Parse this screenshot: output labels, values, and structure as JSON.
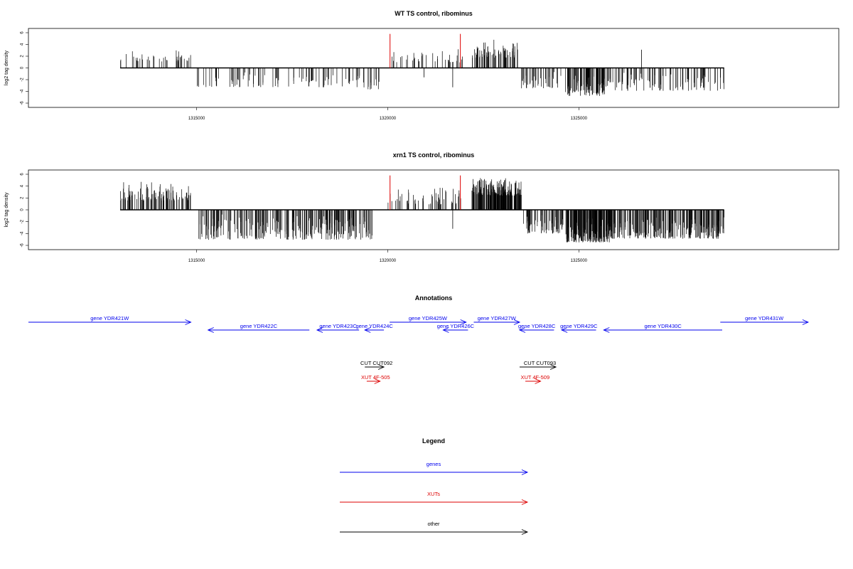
{
  "chart_data": [
    {
      "type": "bar",
      "title": "WT TS control, ribominus",
      "ylabel": "log2 tag density",
      "xlim": [
        1310600,
        1331800
      ],
      "ylim": [
        -6,
        6
      ],
      "xticks": [
        1315000,
        1320000,
        1325000
      ],
      "yticks": [
        -6,
        -4,
        -2,
        0,
        2,
        4,
        6
      ],
      "markers": [
        {
          "x": 1320060,
          "y": 5.8,
          "color": "#dd0000"
        },
        {
          "x": 1321900,
          "y": 5.8,
          "color": "#dd0000"
        }
      ],
      "segments": [
        {
          "from": 1313000,
          "to": 1314850,
          "min": 0.6,
          "max": 3.4,
          "n": 40
        },
        {
          "from": 1315000,
          "to": 1319300,
          "min": -3.8,
          "max": -0.4,
          "n": 90
        },
        {
          "from": 1319350,
          "to": 1319800,
          "min": -4.2,
          "max": -0.8,
          "n": 14
        },
        {
          "from": 1320100,
          "to": 1322000,
          "min": 0.5,
          "max": 3.2,
          "n": 40
        },
        {
          "from": 1322200,
          "to": 1323400,
          "min": 1.2,
          "max": 4.8,
          "n": 70
        },
        {
          "from": 1323500,
          "to": 1324600,
          "min": -4.0,
          "max": -0.5,
          "n": 40
        },
        {
          "from": 1324650,
          "to": 1325700,
          "min": -5.4,
          "max": -1.2,
          "n": 90
        },
        {
          "from": 1325700,
          "to": 1328800,
          "min": -4.5,
          "max": -0.5,
          "n": 100
        }
      ],
      "spikes": [
        {
          "x": 1326640,
          "y": 3.1
        },
        {
          "x": 1321700,
          "y": -3.3
        },
        {
          "x": 1320950,
          "y": -1.6
        }
      ]
    },
    {
      "type": "bar",
      "title": "xrn1 TS control, ribominus",
      "ylabel": "log2 tag density",
      "xlim": [
        1310600,
        1331800
      ],
      "ylim": [
        -6,
        6
      ],
      "xticks": [
        1315000,
        1320000,
        1325000
      ],
      "yticks": [
        -6,
        -4,
        -2,
        0,
        2,
        4,
        6
      ],
      "markers": [
        {
          "x": 1320060,
          "y": 5.8,
          "color": "#dd0000"
        },
        {
          "x": 1321900,
          "y": 5.8,
          "color": "#dd0000"
        }
      ],
      "segments": [
        {
          "from": 1313000,
          "to": 1314850,
          "min": 1.0,
          "max": 4.9,
          "n": 110
        },
        {
          "from": 1315050,
          "to": 1319600,
          "min": -5.8,
          "max": -0.8,
          "n": 260
        },
        {
          "from": 1320000,
          "to": 1321950,
          "min": 0.4,
          "max": 3.8,
          "n": 55
        },
        {
          "from": 1322200,
          "to": 1323500,
          "min": 1.8,
          "max": 5.6,
          "n": 190
        },
        {
          "from": 1323550,
          "to": 1324600,
          "min": -4.6,
          "max": -0.6,
          "n": 60
        },
        {
          "from": 1324650,
          "to": 1325800,
          "min": -6.2,
          "max": -1.5,
          "n": 170
        },
        {
          "from": 1325800,
          "to": 1328800,
          "min": -5.6,
          "max": -0.8,
          "n": 230
        }
      ],
      "spikes": [
        {
          "x": 1321700,
          "y": -3.2
        }
      ]
    }
  ],
  "annotations": {
    "title": "Annotations",
    "xlim": [
      1310600,
      1331800
    ],
    "genes": [
      {
        "label": "gene YDR421W",
        "from": 1310600,
        "to": 1314850,
        "dir": "+",
        "row": 0,
        "color": "#0000ee"
      },
      {
        "label": "gene YDR422C",
        "from": 1315300,
        "to": 1317950,
        "dir": "-",
        "row": 1,
        "color": "#0000ee"
      },
      {
        "label": "gene YDR423C",
        "from": 1318150,
        "to": 1319250,
        "dir": "-",
        "row": 1,
        "color": "#0000ee"
      },
      {
        "label": "gene YDR424C",
        "from": 1319400,
        "to": 1319900,
        "dir": "-",
        "row": 1,
        "color": "#0000ee"
      },
      {
        "label": "gene YDR425W",
        "from": 1320050,
        "to": 1322050,
        "dir": "+",
        "row": 0,
        "color": "#0000ee"
      },
      {
        "label": "gene YDR426C",
        "from": 1321450,
        "to": 1322100,
        "dir": "-",
        "row": 1,
        "color": "#0000ee"
      },
      {
        "label": "gene YDR427W",
        "from": 1322250,
        "to": 1323450,
        "dir": "+",
        "row": 0,
        "color": "#0000ee"
      },
      {
        "label": "gene YDR428C",
        "from": 1323450,
        "to": 1324350,
        "dir": "-",
        "row": 1,
        "color": "#0000ee"
      },
      {
        "label": "gene YDR429C",
        "from": 1324550,
        "to": 1325450,
        "dir": "-",
        "row": 1,
        "color": "#0000ee"
      },
      {
        "label": "gene YDR430C",
        "from": 1325650,
        "to": 1328750,
        "dir": "-",
        "row": 1,
        "color": "#0000ee"
      },
      {
        "label": "gene YDR431W",
        "from": 1328700,
        "to": 1331000,
        "dir": "+",
        "row": 0,
        "color": "#0000ee"
      }
    ],
    "features": [
      {
        "label": "CUT CUT092",
        "from": 1319400,
        "to": 1319900,
        "dir": "+",
        "y": 516,
        "color": "#000000"
      },
      {
        "label": "XUT 4F-505",
        "from": 1319450,
        "to": 1319800,
        "dir": "+",
        "y": 536,
        "color": "#dd0000"
      },
      {
        "label": "CUT CUT093",
        "from": 1323450,
        "to": 1324400,
        "dir": "+",
        "y": 516,
        "color": "#000000"
      },
      {
        "label": "XUT 4F-509",
        "from": 1323600,
        "to": 1324000,
        "dir": "+",
        "y": 536,
        "color": "#dd0000"
      }
    ]
  },
  "legend": {
    "title": "Legend",
    "items": [
      {
        "label": "genes",
        "color": "#0000ee"
      },
      {
        "label": "XUTs",
        "color": "#dd0000"
      },
      {
        "label": "other",
        "color": "#000000"
      }
    ]
  }
}
